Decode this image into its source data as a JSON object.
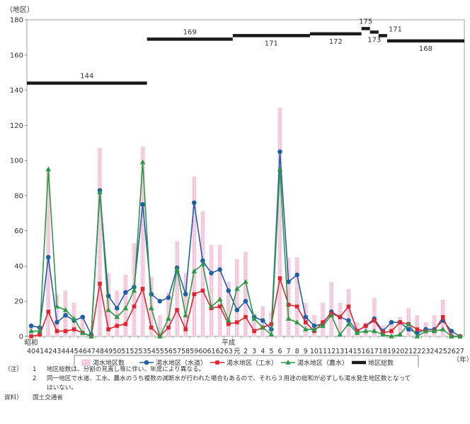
{
  "chart_data": {
    "type": "bar",
    "ylabel": "（地区）",
    "ylim": [
      0,
      180
    ],
    "yticks": [
      0,
      20,
      40,
      60,
      80,
      100,
      120,
      140,
      160,
      180
    ],
    "x_unit": "（年）",
    "era_labels": [
      {
        "label": "昭和",
        "at_index": 0
      },
      {
        "label": "平成",
        "at_index": 23
      }
    ],
    "categories": [
      "40",
      "41",
      "42",
      "43",
      "44",
      "45",
      "46",
      "47",
      "48",
      "49",
      "50",
      "51",
      "52",
      "53",
      "54",
      "55",
      "56",
      "57",
      "58",
      "59",
      "60",
      "61",
      "62",
      "63",
      "元",
      "2",
      "3",
      "4",
      "5",
      "6",
      "7",
      "8",
      "9",
      "10",
      "11",
      "12",
      "13",
      "14",
      "15",
      "16",
      "17",
      "18",
      "19",
      "20",
      "21",
      "22",
      "23",
      "24",
      "25",
      "26",
      "27"
    ],
    "legend": [
      "渇水地区数",
      "渇水地区（水道）",
      "渇水地区（工水）",
      "渇水地区（農水）",
      "地区総数"
    ],
    "bars": {
      "name": "渇水地区数",
      "color": "#f29ec4",
      "values": [
        6,
        4,
        94,
        24,
        26,
        19,
        12,
        2,
        107,
        36,
        26,
        35,
        53,
        108,
        34,
        12,
        25,
        54,
        36,
        91,
        71,
        52,
        52,
        31,
        44,
        48,
        13,
        17,
        14,
        130,
        45,
        45,
        19,
        12,
        19,
        31,
        19,
        27,
        8,
        8,
        22,
        6,
        7,
        11,
        16,
        12,
        8,
        12,
        21,
        4,
        1
      ]
    },
    "series": [
      {
        "name": "渇水地区（水道）",
        "color": "#1f5fa8",
        "marker": "circle",
        "values": [
          6,
          5,
          45,
          8,
          12,
          9,
          11,
          1,
          83,
          23,
          16,
          25,
          28,
          75,
          24,
          20,
          22,
          39,
          24,
          76,
          43,
          36,
          38,
          26,
          15,
          20,
          11,
          9,
          4,
          105,
          31,
          35,
          11,
          6,
          7,
          14,
          11,
          9,
          3,
          6,
          10,
          3,
          8,
          8,
          4,
          2,
          4,
          4,
          9,
          3,
          0
        ]
      },
      {
        "name": "渇水地区（工水）",
        "color": "#e3232e",
        "marker": "square",
        "values": [
          0,
          1,
          14,
          3,
          3,
          4,
          2,
          0,
          30,
          4,
          6,
          7,
          17,
          27,
          5,
          0,
          5,
          15,
          4,
          24,
          26,
          16,
          17,
          7,
          8,
          11,
          3,
          5,
          7,
          33,
          18,
          17,
          8,
          3,
          8,
          13,
          11,
          17,
          3,
          6,
          9,
          2,
          3,
          8,
          7,
          4,
          3,
          3,
          11,
          0,
          0
        ]
      },
      {
        "name": "渇水地区（農水）",
        "color": "#2a9a47",
        "marker": "triangle",
        "values": [
          3,
          3,
          95,
          17,
          15,
          10,
          2,
          0,
          82,
          15,
          11,
          16,
          26,
          99,
          16,
          0,
          10,
          38,
          12,
          37,
          41,
          17,
          21,
          9,
          27,
          31,
          10,
          5,
          1,
          95,
          10,
          8,
          4,
          4,
          6,
          12,
          1,
          7,
          2,
          3,
          3,
          1,
          0,
          1,
          7,
          0,
          3,
          3,
          4,
          0,
          0
        ]
      }
    ],
    "total_series": {
      "name": "地区総数",
      "color": "#1a1a1a",
      "segments": [
        {
          "from": "40",
          "to": "53",
          "value": 144,
          "label": "144"
        },
        {
          "from": "54",
          "to": "63",
          "value": 169,
          "label": "169"
        },
        {
          "from": "元",
          "to": "9",
          "value": 171,
          "label": "171"
        },
        {
          "from": "10",
          "to": "15",
          "value": 172,
          "label": "172"
        },
        {
          "from": "16",
          "to": "16",
          "value": 175,
          "label": "175"
        },
        {
          "from": "17",
          "to": "17",
          "value": 173,
          "label": "173"
        },
        {
          "from": "18",
          "to": "18",
          "value": 171,
          "label": "171"
        },
        {
          "from": "19",
          "to": "27",
          "value": 168,
          "label": "168"
        }
      ]
    }
  },
  "notes": {
    "note_label": "（注）",
    "items": [
      {
        "num": "1",
        "text": "地区総数は、分割の見直し等に伴い、年度により異なる。"
      },
      {
        "num": "2",
        "text": "同一地区で水道、工水、農水のうち複数の減断水が行われた場合もあるので、それら３用途の総和が必ずしも渇水発生地区数となって"
      },
      {
        "num": "",
        "text": "はいない。"
      }
    ],
    "source_label": "資料）",
    "source_text": "国土交通省"
  }
}
